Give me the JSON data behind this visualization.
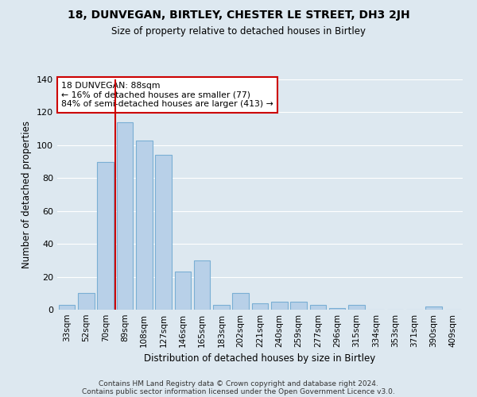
{
  "title": "18, DUNVEGAN, BIRTLEY, CHESTER LE STREET, DH3 2JH",
  "subtitle": "Size of property relative to detached houses in Birtley",
  "xlabel": "Distribution of detached houses by size in Birtley",
  "ylabel": "Number of detached properties",
  "categories": [
    "33sqm",
    "52sqm",
    "70sqm",
    "89sqm",
    "108sqm",
    "127sqm",
    "146sqm",
    "165sqm",
    "183sqm",
    "202sqm",
    "221sqm",
    "240sqm",
    "259sqm",
    "277sqm",
    "296sqm",
    "315sqm",
    "334sqm",
    "353sqm",
    "371sqm",
    "390sqm",
    "409sqm"
  ],
  "values": [
    3,
    10,
    90,
    114,
    103,
    94,
    23,
    30,
    3,
    10,
    4,
    5,
    5,
    3,
    1,
    3,
    0,
    0,
    0,
    2,
    0
  ],
  "bar_color": "#b8d0e8",
  "bar_edge_color": "#7aafd4",
  "vline_color": "#cc0000",
  "annotation_text": "18 DUNVEGAN: 88sqm\n← 16% of detached houses are smaller (77)\n84% of semi-detached houses are larger (413) →",
  "annotation_box_facecolor": "#ffffff",
  "annotation_box_edgecolor": "#cc0000",
  "ylim": [
    0,
    140
  ],
  "yticks": [
    0,
    20,
    40,
    60,
    80,
    100,
    120,
    140
  ],
  "background_color": "#dde8f0",
  "grid_color": "#ffffff",
  "footer_line1": "Contains HM Land Registry data © Crown copyright and database right 2024.",
  "footer_line2": "Contains public sector information licensed under the Open Government Licence v3.0."
}
